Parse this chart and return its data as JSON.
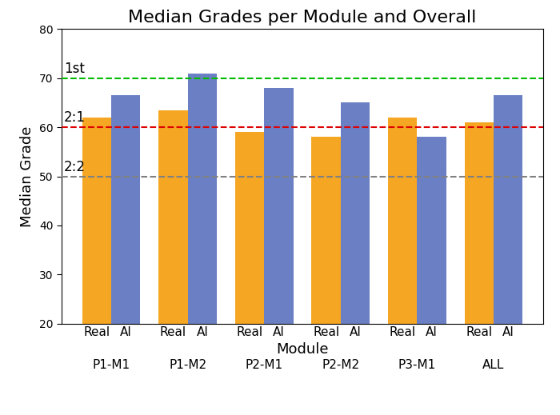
{
  "title": "Median Grades per Module and Overall",
  "xlabel": "Module",
  "ylabel": "Median Grade",
  "ylim": [
    20,
    80
  ],
  "yticks": [
    20,
    30,
    40,
    50,
    60,
    70,
    80
  ],
  "groups": [
    "P1-M1",
    "P1-M2",
    "P2-M1",
    "P2-M2",
    "P3-M1",
    "ALL"
  ],
  "real_values": [
    62,
    63.5,
    59,
    58,
    62,
    61
  ],
  "ai_values": [
    66.5,
    71,
    68,
    65,
    58,
    66.5
  ],
  "real_color": "#F5A623",
  "ai_color": "#6B7FC4",
  "hline_green": 70,
  "hline_red": 60,
  "hline_grey": 50,
  "hline_green_color": "#00BB00",
  "hline_red_color": "#DD0000",
  "hline_grey_color": "#808080",
  "label_1st": "1st",
  "label_2_1": "2:1",
  "label_2_2": "2:2",
  "bar_width": 0.38,
  "title_fontsize": 16,
  "axis_fontsize": 13,
  "tick_fontsize": 11,
  "label_fontsize": 12
}
